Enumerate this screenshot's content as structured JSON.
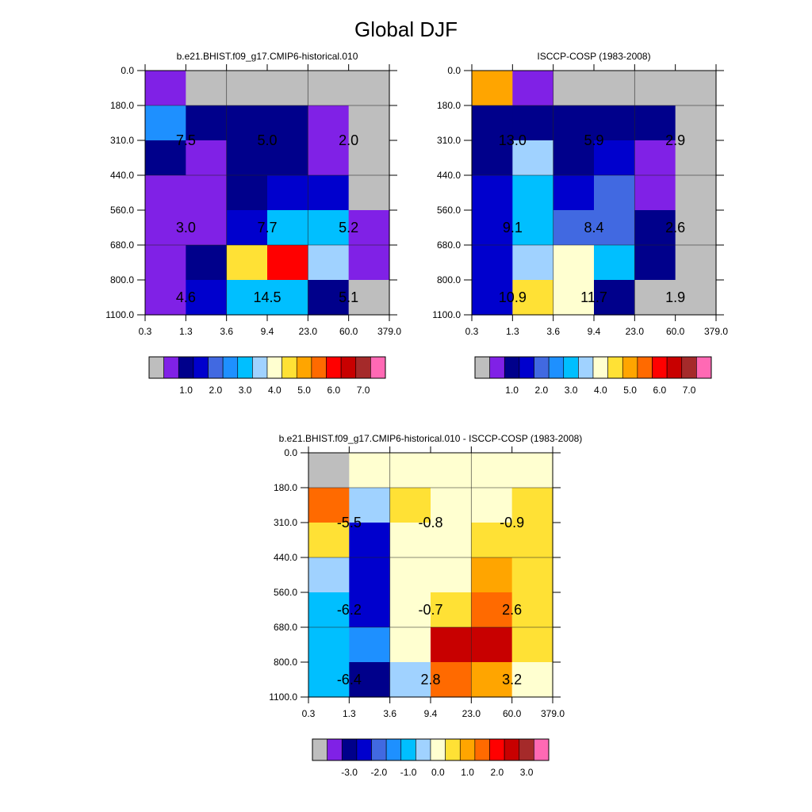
{
  "figure": {
    "title": "Global DJF"
  },
  "chart_data": [
    {
      "type": "heatmap",
      "title": "b.e21.BHIST.f09_g17.CMIP6-historical.010",
      "x_ticks": [
        "0.3",
        "1.3",
        "3.6",
        "9.4",
        "23.0",
        "60.0",
        "379.0"
      ],
      "y_ticks": [
        "0.0",
        "180.0",
        "310.0",
        "440.0",
        "560.0",
        "680.0",
        "800.0",
        "1100.0"
      ],
      "cells": [
        [
          1,
          0,
          0,
          0,
          0,
          0
        ],
        [
          5,
          2,
          2,
          2,
          1,
          0
        ],
        [
          2,
          1,
          2,
          2,
          1,
          0
        ],
        [
          1,
          1,
          2,
          3,
          3,
          0
        ],
        [
          1,
          1,
          3,
          6,
          6,
          1
        ],
        [
          1,
          2,
          9,
          12,
          7,
          1
        ],
        [
          1,
          3,
          6,
          6,
          2,
          0
        ]
      ],
      "labels": [
        {
          "text": "7.5",
          "col": 1,
          "row": 1.5
        },
        {
          "text": "5.0",
          "col": 3,
          "row": 1.5
        },
        {
          "text": "2.0",
          "col": 5,
          "row": 1.5
        },
        {
          "text": "3.0",
          "col": 1,
          "row": 4
        },
        {
          "text": "7.7",
          "col": 3,
          "row": 4
        },
        {
          "text": "5.2",
          "col": 5,
          "row": 4
        },
        {
          "text": "4.6",
          "col": 1,
          "row": 6
        },
        {
          "text": "14.5",
          "col": 3,
          "row": 6
        },
        {
          "text": "5.1",
          "col": 5,
          "row": 6
        }
      ],
      "colorbar_labels": [
        "1.0",
        "2.0",
        "3.0",
        "4.0",
        "5.0",
        "6.0",
        "7.0"
      ]
    },
    {
      "type": "heatmap",
      "title": "ISCCP-COSP (1983-2008)",
      "x_ticks": [
        "0.3",
        "1.3",
        "3.6",
        "9.4",
        "23.0",
        "60.0",
        "379.0"
      ],
      "y_ticks": [
        "0.0",
        "180.0",
        "310.0",
        "440.0",
        "560.0",
        "680.0",
        "800.0",
        "1100.0"
      ],
      "cells": [
        [
          10,
          1,
          0,
          0,
          0,
          0
        ],
        [
          2,
          2,
          2,
          2,
          2,
          0
        ],
        [
          2,
          7,
          2,
          3,
          1,
          0
        ],
        [
          3,
          6,
          3,
          4,
          1,
          0
        ],
        [
          3,
          6,
          4,
          4,
          2,
          0
        ],
        [
          3,
          7,
          8,
          6,
          2,
          0
        ],
        [
          3,
          9,
          8,
          2,
          0,
          0
        ]
      ],
      "labels": [
        {
          "text": "13.0",
          "col": 1,
          "row": 1.5
        },
        {
          "text": "5.9",
          "col": 3,
          "row": 1.5
        },
        {
          "text": "2.9",
          "col": 5,
          "row": 1.5
        },
        {
          "text": "9.1",
          "col": 1,
          "row": 4
        },
        {
          "text": "8.4",
          "col": 3,
          "row": 4
        },
        {
          "text": "2.6",
          "col": 5,
          "row": 4
        },
        {
          "text": "10.9",
          "col": 1,
          "row": 6
        },
        {
          "text": "11.7",
          "col": 3,
          "row": 6
        },
        {
          "text": "1.9",
          "col": 5,
          "row": 6
        }
      ],
      "colorbar_labels": [
        "1.0",
        "2.0",
        "3.0",
        "4.0",
        "5.0",
        "6.0",
        "7.0"
      ]
    },
    {
      "type": "heatmap",
      "title": "b.e21.BHIST.f09_g17.CMIP6-historical.010 - ISCCP-COSP (1983-2008)",
      "x_ticks": [
        "0.3",
        "1.3",
        "3.6",
        "9.4",
        "23.0",
        "60.0",
        "379.0"
      ],
      "y_ticks": [
        "0.0",
        "180.0",
        "310.0",
        "440.0",
        "560.0",
        "680.0",
        "800.0",
        "1100.0"
      ],
      "cells": [
        [
          0,
          8,
          8,
          8,
          8,
          8
        ],
        [
          11,
          7,
          9,
          8,
          8,
          9
        ],
        [
          9,
          3,
          8,
          8,
          9,
          9
        ],
        [
          7,
          3,
          8,
          8,
          10,
          9
        ],
        [
          6,
          3,
          8,
          9,
          11,
          9
        ],
        [
          6,
          5,
          8,
          13,
          13,
          9
        ],
        [
          6,
          2,
          7,
          11,
          10,
          8
        ]
      ],
      "labels": [
        {
          "text": "-5.5",
          "col": 1,
          "row": 1.5
        },
        {
          "text": "-0.8",
          "col": 3,
          "row": 1.5
        },
        {
          "text": "-0.9",
          "col": 5,
          "row": 1.5
        },
        {
          "text": "-6.2",
          "col": 1,
          "row": 4
        },
        {
          "text": "-0.7",
          "col": 3,
          "row": 4
        },
        {
          "text": "2.6",
          "col": 5,
          "row": 4
        },
        {
          "text": "-6.4",
          "col": 1,
          "row": 6
        },
        {
          "text": "2.8",
          "col": 3,
          "row": 6
        },
        {
          "text": "3.2",
          "col": 5,
          "row": 6
        }
      ],
      "colorbar_labels": [
        "-3.0",
        "-2.0",
        "-1.0",
        "0.0",
        "1.0",
        "2.0",
        "3.0"
      ]
    }
  ],
  "palette": [
    "#bebebe",
    "#8021e6",
    "#00008b",
    "#0000cd",
    "#4169e1",
    "#1e90ff",
    "#00bfff",
    "#a0d2ff",
    "#ffffd0",
    "#ffe135",
    "#ffa500",
    "#ff6a00",
    "#ff0000",
    "#c80000",
    "#a52a2a",
    "#ff69b4"
  ]
}
